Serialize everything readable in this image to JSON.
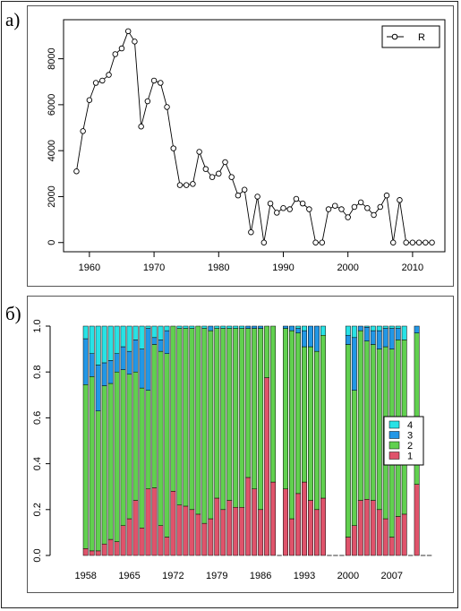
{
  "panels": {
    "a_label": "а)",
    "b_label": "б)"
  },
  "chart_data": [
    {
      "type": "line",
      "x": [
        1958,
        1959,
        1960,
        1961,
        1962,
        1963,
        1964,
        1965,
        1966,
        1967,
        1968,
        1969,
        1970,
        1971,
        1972,
        1973,
        1974,
        1975,
        1976,
        1977,
        1978,
        1979,
        1980,
        1981,
        1982,
        1983,
        1984,
        1985,
        1986,
        1987,
        1988,
        1989,
        1990,
        1991,
        1992,
        1993,
        1994,
        1995,
        1996,
        1997,
        1998,
        1999,
        2000,
        2001,
        2002,
        2003,
        2004,
        2005,
        2006,
        2007,
        2008,
        2009,
        2010,
        2011,
        2012,
        2013
      ],
      "series": [
        {
          "name": "R",
          "values": [
            3100,
            4850,
            6200,
            6950,
            7050,
            7300,
            8200,
            8450,
            9200,
            8750,
            5050,
            6150,
            7050,
            6950,
            5900,
            4100,
            2500,
            2500,
            2550,
            3950,
            3200,
            2850,
            3000,
            3500,
            2850,
            2050,
            2300,
            450,
            2000,
            0,
            1700,
            1300,
            1500,
            1450,
            1900,
            1700,
            1450,
            0,
            0,
            1450,
            1600,
            1450,
            1100,
            1550,
            1750,
            1500,
            1200,
            1550,
            2050,
            0,
            1850,
            0,
            0,
            0,
            0,
            0
          ]
        }
      ],
      "xticks": [
        1960,
        1970,
        1980,
        1990,
        2000,
        2010
      ],
      "yticks": [
        0,
        2000,
        4000,
        6000,
        8000
      ],
      "xlim": [
        1956,
        2015
      ],
      "ylim": [
        -400,
        9700
      ],
      "legend_position": "top-right",
      "marker": "open-circle",
      "colors": {
        "line": "#000000"
      }
    },
    {
      "type": "bar",
      "stacked": true,
      "categories": [
        1958,
        1959,
        1960,
        1961,
        1962,
        1963,
        1964,
        1965,
        1966,
        1967,
        1968,
        1969,
        1970,
        1971,
        1972,
        1973,
        1974,
        1975,
        1976,
        1977,
        1978,
        1979,
        1980,
        1981,
        1982,
        1983,
        1984,
        1985,
        1986,
        1987,
        1988,
        1989,
        1990,
        1991,
        1992,
        1993,
        1994,
        1995,
        1996,
        1997,
        1998,
        1999,
        2000,
        2001,
        2002,
        2003,
        2004,
        2005,
        2006,
        2007,
        2008,
        2009,
        2010,
        2011,
        2012,
        2013
      ],
      "xticks": [
        1958,
        1965,
        1972,
        1979,
        1986,
        1993,
        2000,
        2007
      ],
      "yticks": [
        "0.0",
        "0.2",
        "0.4",
        "0.6",
        "0.8",
        "1.0"
      ],
      "ylim": [
        0,
        1
      ],
      "legend_position": "right",
      "series": [
        {
          "name": "1",
          "color": "#df536b",
          "values": [
            0.03,
            0.02,
            0.02,
            0.05,
            0.07,
            0.06,
            0.13,
            0.16,
            0.24,
            0.12,
            0.29,
            0.295,
            0.13,
            0.08,
            0.28,
            0.22,
            0.215,
            0.2,
            0.18,
            0.14,
            0.16,
            0.25,
            0.2,
            0.24,
            0.21,
            0.21,
            0.34,
            0.29,
            0.2,
            0.775,
            0.32,
            null,
            0.29,
            0.16,
            0.27,
            0.32,
            0.24,
            0.2,
            0.25,
            null,
            null,
            null,
            0.08,
            0.13,
            0.24,
            0.245,
            0.24,
            0.2,
            0.16,
            0.08,
            0.17,
            0.18,
            null,
            0.31,
            null,
            null
          ]
        },
        {
          "name": "2",
          "color": "#61d04f",
          "values": [
            0.715,
            0.76,
            0.61,
            0.69,
            0.68,
            0.74,
            0.68,
            0.63,
            0.56,
            0.61,
            0.43,
            0.625,
            0.76,
            0.8,
            0.72,
            0.77,
            0.775,
            0.79,
            0.82,
            0.85,
            0.82,
            0.74,
            0.79,
            0.75,
            0.78,
            0.78,
            0.65,
            0.7,
            0.79,
            0.225,
            0.68,
            null,
            0.7,
            0.82,
            0.7,
            0.59,
            0.67,
            0.69,
            0.71,
            null,
            null,
            null,
            0.84,
            0.59,
            0.74,
            0.69,
            0.68,
            0.7,
            0.75,
            0.82,
            0.77,
            0.76,
            null,
            0.66,
            null,
            null
          ]
        },
        {
          "name": "3",
          "color": "#2297e6",
          "values": [
            0.2,
            0.1,
            0.2,
            0.1,
            0.1,
            0.08,
            0.1,
            0.1,
            0.14,
            0.17,
            0.27,
            0.03,
            0.05,
            0.1,
            0,
            0,
            0,
            0,
            0,
            0,
            0.02,
            0,
            0,
            0,
            0,
            0,
            0.01,
            0.01,
            0.01,
            0,
            0,
            null,
            0.01,
            0.02,
            0.02,
            0.07,
            0.09,
            0.11,
            0,
            null,
            null,
            null,
            0.04,
            0.23,
            0.02,
            0.06,
            0.06,
            0.08,
            0.08,
            0.09,
            0.05,
            0,
            null,
            0.03,
            null,
            null
          ]
        },
        {
          "name": "4",
          "color": "#28e2e5",
          "values": [
            0.055,
            0.12,
            0.17,
            0.16,
            0.15,
            0.12,
            0.09,
            0.11,
            0.06,
            0.1,
            0.01,
            0.05,
            0.06,
            0.02,
            0,
            0.01,
            0.01,
            0.01,
            0,
            0.01,
            0,
            0.01,
            0.01,
            0.01,
            0.01,
            0.01,
            0,
            0,
            0,
            0,
            0,
            null,
            0,
            0,
            0.01,
            0.02,
            0,
            0,
            0.04,
            null,
            null,
            null,
            0.04,
            0.05,
            0,
            0.005,
            0.02,
            0.02,
            0.01,
            0.01,
            0.01,
            0.06,
            null,
            0,
            null,
            null
          ]
        }
      ]
    }
  ]
}
